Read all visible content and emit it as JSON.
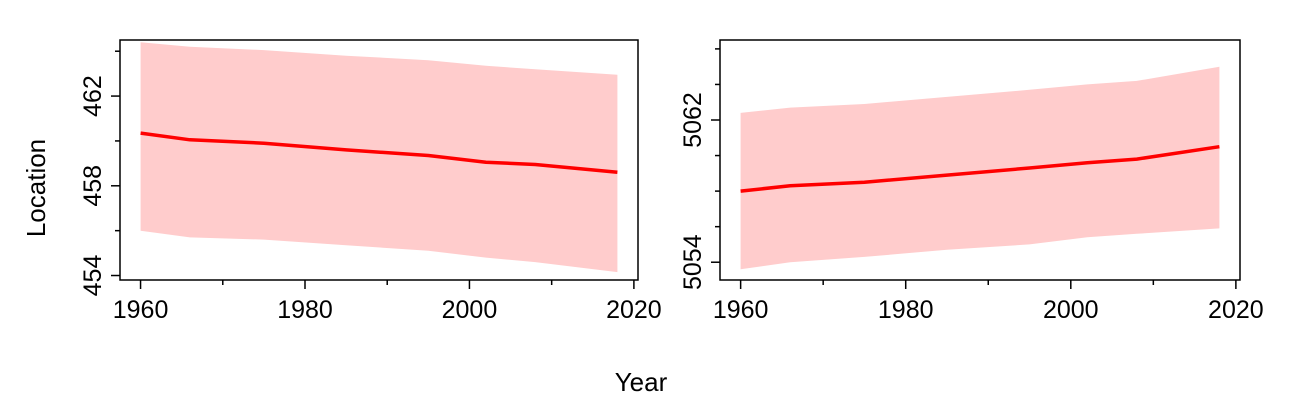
{
  "figure": {
    "shared_xlabel": "Year",
    "shared_ylabel": "Location"
  },
  "chart_data": [
    {
      "type": "line",
      "title": "",
      "xlabel": "Year",
      "ylabel": "Location",
      "xlim": [
        1957.5,
        2020.5
      ],
      "ylim": [
        453.8,
        464.5
      ],
      "xticks": [
        1960,
        1980,
        2000,
        2020
      ],
      "xminor_ticks": [
        1970,
        1990,
        2010
      ],
      "yticks": [
        454,
        458,
        462
      ],
      "yminor_ticks": [
        456,
        460,
        464
      ],
      "grid": false,
      "colors": {
        "line": "#ff0000",
        "band": "#ffcccc"
      },
      "series": [
        {
          "x": [
            1960,
            1966,
            1975,
            1985,
            1995,
            2002,
            2008,
            2018
          ],
          "values": [
            460.35,
            460.05,
            459.9,
            459.6,
            459.35,
            459.05,
            458.95,
            458.6
          ],
          "lower": [
            456.0,
            455.7,
            455.6,
            455.35,
            455.1,
            454.8,
            454.6,
            454.15
          ],
          "upper": [
            464.4,
            464.2,
            464.05,
            463.8,
            463.6,
            463.35,
            463.2,
            462.95
          ]
        }
      ]
    },
    {
      "type": "line",
      "title": "",
      "xlabel": "Year",
      "ylabel": "Location",
      "xlim": [
        1957.5,
        2020.5
      ],
      "ylim": [
        5053,
        5066.5
      ],
      "xticks": [
        1960,
        1980,
        2000,
        2020
      ],
      "xminor_ticks": [
        1970,
        1990,
        2010
      ],
      "yticks": [
        5054,
        5062
      ],
      "yminor_ticks": [
        5056,
        5058,
        5060,
        5064,
        5066
      ],
      "grid": false,
      "colors": {
        "line": "#ff0000",
        "band": "#ffcccc"
      },
      "series": [
        {
          "x": [
            1960,
            1966,
            1975,
            1985,
            1995,
            2002,
            2008,
            2018
          ],
          "values": [
            5058.0,
            5058.3,
            5058.5,
            5058.9,
            5059.3,
            5059.6,
            5059.8,
            5060.5
          ],
          "lower": [
            5053.6,
            5054.0,
            5054.3,
            5054.7,
            5055.0,
            5055.4,
            5055.6,
            5055.9
          ],
          "upper": [
            5062.4,
            5062.7,
            5062.9,
            5063.3,
            5063.7,
            5064.0,
            5064.2,
            5065.0
          ]
        }
      ]
    }
  ]
}
